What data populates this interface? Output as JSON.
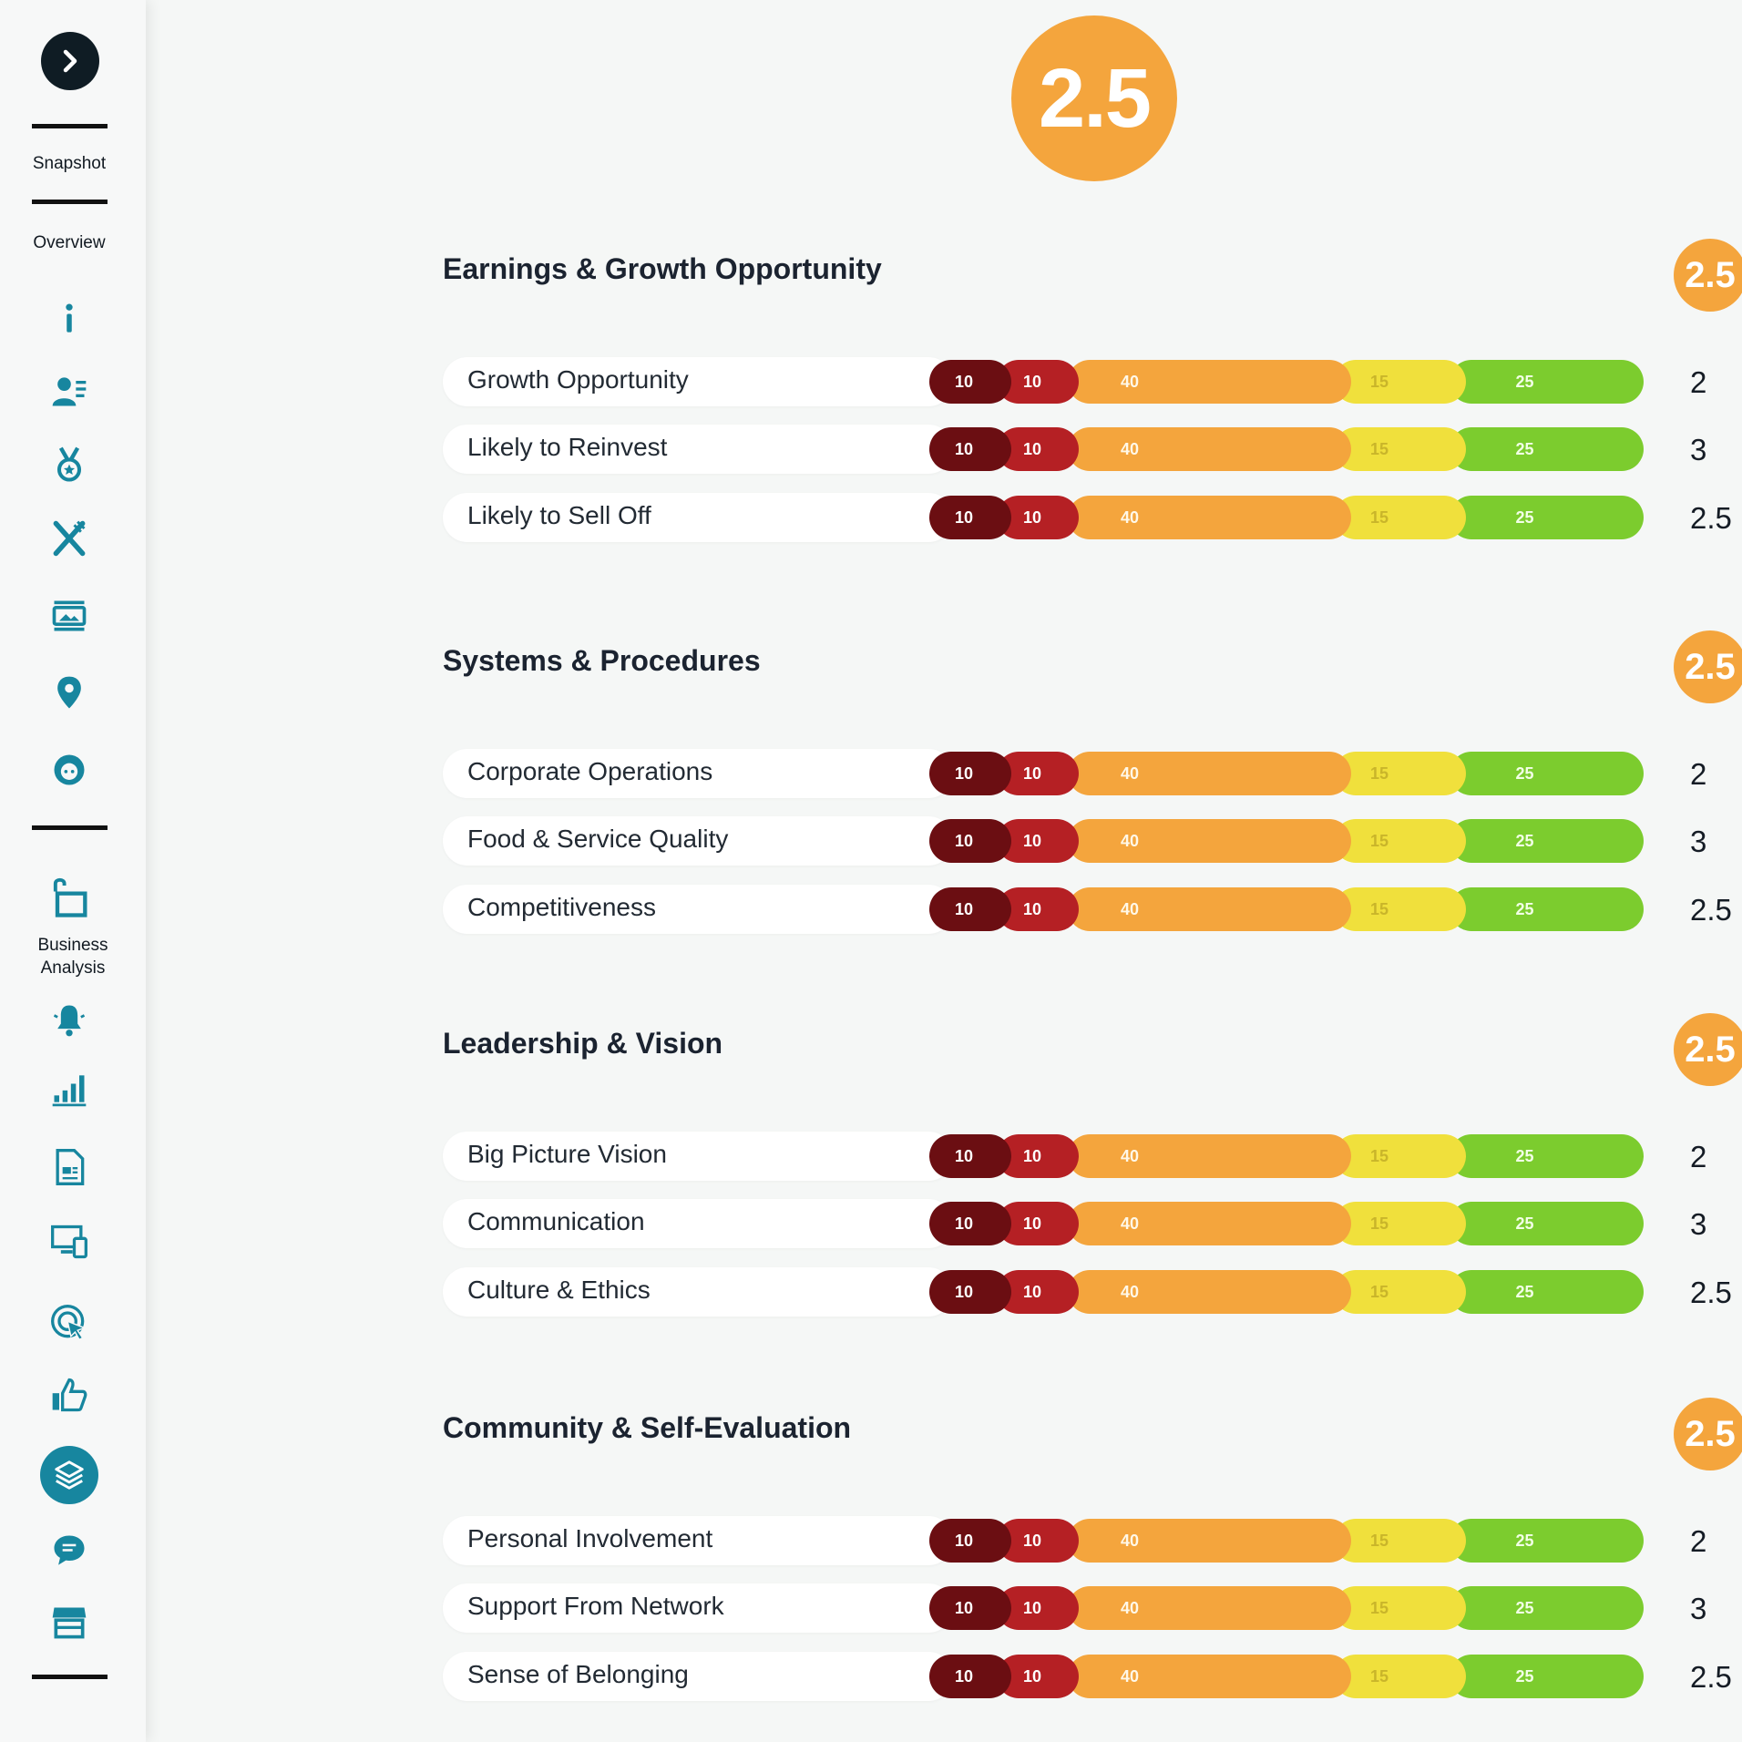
{
  "sidebar": {
    "toggle_icon": "chevron-right-icon",
    "snapshot_label": "Snapshot",
    "overview_label": "Overview",
    "business_analysis_label": "Business Analysis",
    "accent": "#17869f"
  },
  "overall_score": "2.5",
  "colors": {
    "score_badge": "#f4a53d",
    "segment_colors": [
      "#6b0e12",
      "#b52024",
      "#f4a53d",
      "#f0e03c",
      "#7ccc2e"
    ]
  },
  "segment_values": [
    "10",
    "10",
    "40",
    "15",
    "25"
  ],
  "sections": [
    {
      "title": "Earnings & Growth Opportunity",
      "score": "2.5",
      "rows": [
        {
          "label": "Growth Opportunity",
          "score": "2"
        },
        {
          "label": "Likely to Reinvest",
          "score": "3"
        },
        {
          "label": "Likely to Sell Off",
          "score": "2.5"
        }
      ]
    },
    {
      "title": "Systems & Procedures",
      "score": "2.5",
      "rows": [
        {
          "label": "Corporate Operations",
          "score": "2"
        },
        {
          "label": "Food & Service Quality",
          "score": "3"
        },
        {
          "label": "Competitiveness",
          "score": "2.5"
        }
      ]
    },
    {
      "title": "Leadership & Vision",
      "score": "2.5",
      "rows": [
        {
          "label": "Big Picture Vision",
          "score": "2"
        },
        {
          "label": "Communication",
          "score": "3"
        },
        {
          "label": "Culture & Ethics",
          "score": "2.5"
        }
      ]
    },
    {
      "title": "Community & Self-Evaluation",
      "score": "2.5",
      "rows": [
        {
          "label": "Personal Involvement",
          "score": "2"
        },
        {
          "label": "Support From Network",
          "score": "3"
        },
        {
          "label": "Sense of Belonging",
          "score": "2.5"
        }
      ]
    }
  ]
}
